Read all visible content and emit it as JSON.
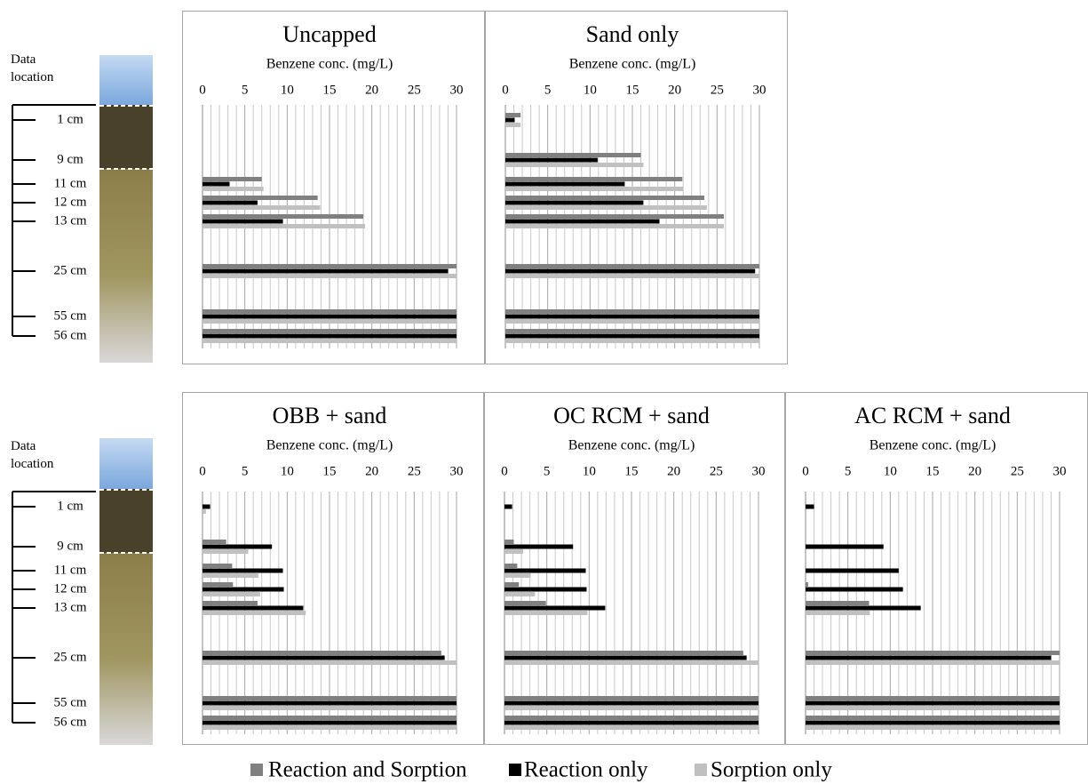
{
  "chart_data": [
    {
      "type": "bar",
      "orientation": "horizontal",
      "title": "Uncapped",
      "xlabel": "Benzene conc. (mg/L)",
      "ylabel": "Data location",
      "categories": [
        "1 cm",
        "9 cm",
        "11 cm",
        "12 cm",
        "13 cm",
        "25 cm",
        "55 cm",
        "56 cm"
      ],
      "xlim": [
        0,
        30
      ],
      "xticks": [
        0,
        5,
        10,
        15,
        20,
        25,
        30
      ],
      "grid": true,
      "legend": "bottom",
      "series": [
        {
          "name": "Reaction and Sorption",
          "color": "#808080",
          "values": [
            0,
            0,
            7.0,
            13.6,
            19.0,
            30,
            30,
            30
          ]
        },
        {
          "name": "Reaction only",
          "color": "#000000",
          "values": [
            0,
            0,
            3.2,
            6.5,
            9.5,
            29.0,
            30,
            30
          ]
        },
        {
          "name": "Sorption only",
          "color": "#c0c0c0",
          "values": [
            0,
            0,
            7.2,
            13.9,
            19.2,
            30,
            30,
            30
          ]
        }
      ]
    },
    {
      "type": "bar",
      "orientation": "horizontal",
      "title": "Sand only",
      "xlabel": "Benzene conc. (mg/L)",
      "categories": [
        "1 cm",
        "9 cm",
        "11 cm",
        "12 cm",
        "13 cm",
        "25 cm",
        "55 cm",
        "56 cm"
      ],
      "xlim": [
        0,
        30
      ],
      "xticks": [
        0,
        5,
        10,
        15,
        20,
        25,
        30
      ],
      "grid": true,
      "series": [
        {
          "name": "Reaction and Sorption",
          "color": "#808080",
          "values": [
            1.8,
            16.0,
            20.9,
            23.5,
            25.8,
            30,
            30,
            30
          ]
        },
        {
          "name": "Reaction only",
          "color": "#000000",
          "values": [
            1.1,
            10.9,
            14.1,
            16.3,
            18.2,
            29.5,
            30,
            30
          ]
        },
        {
          "name": "Sorption only",
          "color": "#c0c0c0",
          "values": [
            1.8,
            16.3,
            21.0,
            23.8,
            25.8,
            30,
            30,
            30
          ]
        }
      ]
    },
    {
      "type": "bar",
      "orientation": "horizontal",
      "title": "OBB + sand",
      "xlabel": "Benzene conc. (mg/L)",
      "ylabel": "Data location",
      "categories": [
        "1 cm",
        "9 cm",
        "11 cm",
        "12 cm",
        "13 cm",
        "25 cm",
        "55 cm",
        "56 cm"
      ],
      "xlim": [
        0,
        30
      ],
      "xticks": [
        0,
        5,
        10,
        15,
        20,
        25,
        30
      ],
      "grid": true,
      "series": [
        {
          "name": "Reaction and Sorption",
          "color": "#808080",
          "values": [
            0,
            2.8,
            3.5,
            3.6,
            6.5,
            28.2,
            30,
            30
          ]
        },
        {
          "name": "Reaction only",
          "color": "#000000",
          "values": [
            0.9,
            8.2,
            9.5,
            9.6,
            11.9,
            28.6,
            30,
            30
          ]
        },
        {
          "name": "Sorption only",
          "color": "#c0c0c0",
          "values": [
            0.4,
            5.4,
            6.6,
            6.8,
            12.2,
            30,
            30,
            30
          ]
        }
      ]
    },
    {
      "type": "bar",
      "orientation": "horizontal",
      "title": "OC RCM + sand",
      "xlabel": "Benzene conc. (mg/L)",
      "categories": [
        "1 cm",
        "9 cm",
        "11 cm",
        "12 cm",
        "13 cm",
        "25 cm",
        "55 cm",
        "56 cm"
      ],
      "xlim": [
        0,
        30
      ],
      "xticks": [
        0,
        5,
        10,
        15,
        20,
        25,
        30
      ],
      "grid": true,
      "series": [
        {
          "name": "Reaction and Sorption",
          "color": "#808080",
          "values": [
            0,
            1.1,
            1.5,
            1.7,
            4.9,
            28.2,
            30,
            30
          ]
        },
        {
          "name": "Reaction only",
          "color": "#000000",
          "values": [
            0.9,
            8.1,
            9.6,
            9.7,
            11.9,
            28.6,
            30,
            30
          ]
        },
        {
          "name": "Sorption only",
          "color": "#c0c0c0",
          "values": [
            0,
            2.2,
            3.1,
            3.6,
            9.8,
            30,
            30,
            30
          ]
        }
      ]
    },
    {
      "type": "bar",
      "orientation": "horizontal",
      "title": "AC RCM + sand",
      "xlabel": "Benzene conc. (mg/L)",
      "categories": [
        "1 cm",
        "9 cm",
        "11 cm",
        "12 cm",
        "13 cm",
        "25 cm",
        "55 cm",
        "56 cm"
      ],
      "xlim": [
        0,
        30
      ],
      "xticks": [
        0,
        5,
        10,
        15,
        20,
        25,
        30
      ],
      "grid": true,
      "series": [
        {
          "name": "Reaction and Sorption",
          "color": "#808080",
          "values": [
            0,
            0,
            0,
            0.3,
            7.5,
            30,
            30,
            30
          ]
        },
        {
          "name": "Reaction only",
          "color": "#000000",
          "values": [
            1.0,
            9.2,
            11.0,
            11.5,
            13.6,
            29.0,
            30,
            30
          ]
        },
        {
          "name": "Sorption only",
          "color": "#c0c0c0",
          "values": [
            0,
            0,
            0,
            0,
            7.6,
            30,
            30,
            30
          ]
        }
      ]
    }
  ]
}
